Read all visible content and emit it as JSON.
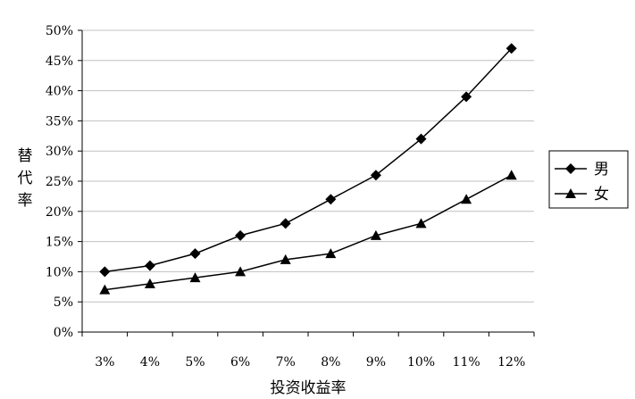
{
  "chart_data": {
    "type": "line",
    "title": "",
    "xlabel": "投资收益率",
    "ylabel": "替代率",
    "categories": [
      "3%",
      "4%",
      "5%",
      "6%",
      "7%",
      "8%",
      "9%",
      "10%",
      "11%",
      "12%"
    ],
    "ylim": [
      0,
      50
    ],
    "yticks": [
      "0%",
      "5%",
      "10%",
      "15%",
      "20%",
      "25%",
      "30%",
      "35%",
      "40%",
      "45%",
      "50%"
    ],
    "grid": true,
    "legend_position": "right",
    "series": [
      {
        "name": "男",
        "marker": "diamond",
        "values": [
          10,
          11,
          13,
          16,
          18,
          22,
          26,
          32,
          39,
          47
        ]
      },
      {
        "name": "女",
        "marker": "triangle",
        "values": [
          7,
          8,
          9,
          10,
          12,
          13,
          16,
          18,
          22,
          26
        ]
      }
    ]
  }
}
